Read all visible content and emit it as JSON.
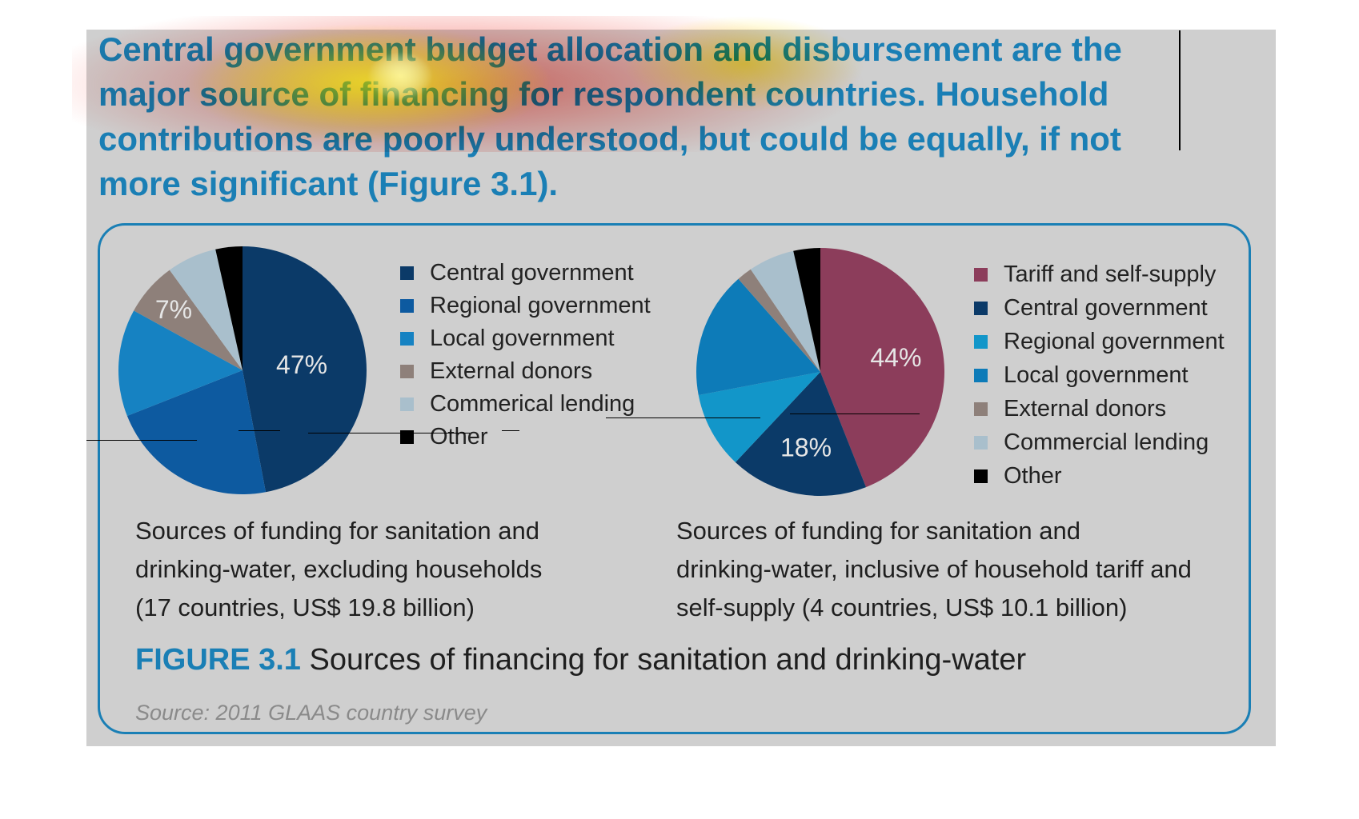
{
  "headline": "Central government budget allocation and disbursement are the major source of financing for respondent countries. Household contributions are poorly understood, but could be equally, if not more significant (Figure 3.1).",
  "colors": {
    "central_government": "#0b3a68",
    "regional_government": "#0d5aa0",
    "local_government": "#1682c2",
    "local_government_alt": "#0d7bb8",
    "regional_government_alt": "#1296c9",
    "external_donors": "#8e807a",
    "commercial_lending": "#a9bfcc",
    "other": "#000000",
    "tariff": "#8c3d5b",
    "accent": "#1a7fb5",
    "panel": "#cfcfcf"
  },
  "chart_data": [
    {
      "type": "pie",
      "caption": [
        "Sources of funding for sanitation and",
        "drinking-water, excluding households",
        "(17 countries, US$ 19.8 billion)"
      ],
      "slices": [
        {
          "label": "Central government",
          "value": 47,
          "color": "#0b3a68",
          "data_label": "47%"
        },
        {
          "label": "Regional government",
          "value": 22,
          "color": "#0d5aa0",
          "data_label": ""
        },
        {
          "label": "Local government",
          "value": 14,
          "color": "#1682c2",
          "data_label": ""
        },
        {
          "label": "External donors",
          "value": 7,
          "color": "#8e807a",
          "data_label": "7%"
        },
        {
          "label": "Commerical lending",
          "value": 6.5,
          "color": "#a9bfcc",
          "data_label": ""
        },
        {
          "label": "Other",
          "value": 3.5,
          "color": "#000000",
          "data_label": ""
        }
      ]
    },
    {
      "type": "pie",
      "caption": [
        "Sources of funding for sanitation and",
        "drinking-water, inclusive of household tariff and",
        "self-supply (4 countries, US$ 10.1 billion)"
      ],
      "slices": [
        {
          "label": "Tariff and self-supply",
          "value": 44,
          "color": "#8c3d5b",
          "data_label": "44%"
        },
        {
          "label": "Central government",
          "value": 18,
          "color": "#0b3a68",
          "data_label": "18%"
        },
        {
          "label": "Regional government",
          "value": 10,
          "color": "#1296c9",
          "data_label": ""
        },
        {
          "label": "Local government",
          "value": 16.5,
          "color": "#0d7bb8",
          "data_label": ""
        },
        {
          "label": "External donors",
          "value": 2,
          "color": "#8e807a",
          "data_label": ""
        },
        {
          "label": "Commercial lending",
          "value": 6,
          "color": "#a9bfcc",
          "data_label": ""
        },
        {
          "label": "Other",
          "value": 3.5,
          "color": "#000000",
          "data_label": ""
        }
      ]
    }
  ],
  "figure": {
    "label": "FIGURE 3.1",
    "title": " Sources of financing for sanitation and drinking-water",
    "source": "Source: 2011 GLAAS country survey"
  }
}
